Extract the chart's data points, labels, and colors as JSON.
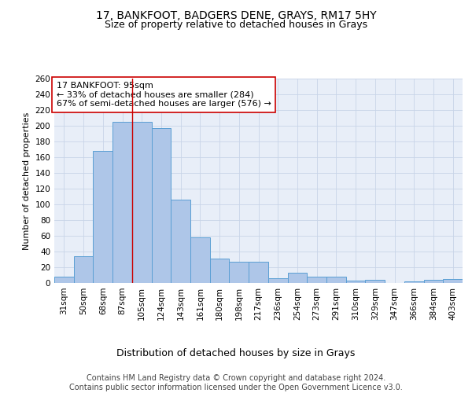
{
  "title1": "17, BANKFOOT, BADGERS DENE, GRAYS, RM17 5HY",
  "title2": "Size of property relative to detached houses in Grays",
  "xlabel": "Distribution of detached houses by size in Grays",
  "ylabel": "Number of detached properties",
  "categories": [
    "31sqm",
    "50sqm",
    "68sqm",
    "87sqm",
    "105sqm",
    "124sqm",
    "143sqm",
    "161sqm",
    "180sqm",
    "198sqm",
    "217sqm",
    "236sqm",
    "254sqm",
    "273sqm",
    "291sqm",
    "310sqm",
    "329sqm",
    "347sqm",
    "366sqm",
    "384sqm",
    "403sqm"
  ],
  "values": [
    8,
    34,
    168,
    205,
    205,
    197,
    106,
    58,
    31,
    27,
    27,
    6,
    13,
    8,
    8,
    3,
    4,
    0,
    2,
    4,
    5
  ],
  "bar_color": "#aec6e8",
  "bar_edge_color": "#5a9fd4",
  "vline_x": 3.5,
  "vline_color": "#cc0000",
  "annotation_text": "17 BANKFOOT: 95sqm\n← 33% of detached houses are smaller (284)\n67% of semi-detached houses are larger (576) →",
  "annotation_box_color": "#ffffff",
  "annotation_box_edge": "#cc0000",
  "ylim": [
    0,
    260
  ],
  "yticks": [
    0,
    20,
    40,
    60,
    80,
    100,
    120,
    140,
    160,
    180,
    200,
    220,
    240,
    260
  ],
  "grid_color": "#c8d4e8",
  "background_color": "#e8eef8",
  "footer_text": "Contains HM Land Registry data © Crown copyright and database right 2024.\nContains public sector information licensed under the Open Government Licence v3.0.",
  "title1_fontsize": 10,
  "title2_fontsize": 9,
  "xlabel_fontsize": 9,
  "ylabel_fontsize": 8,
  "tick_fontsize": 7.5,
  "annotation_fontsize": 8,
  "footer_fontsize": 7
}
